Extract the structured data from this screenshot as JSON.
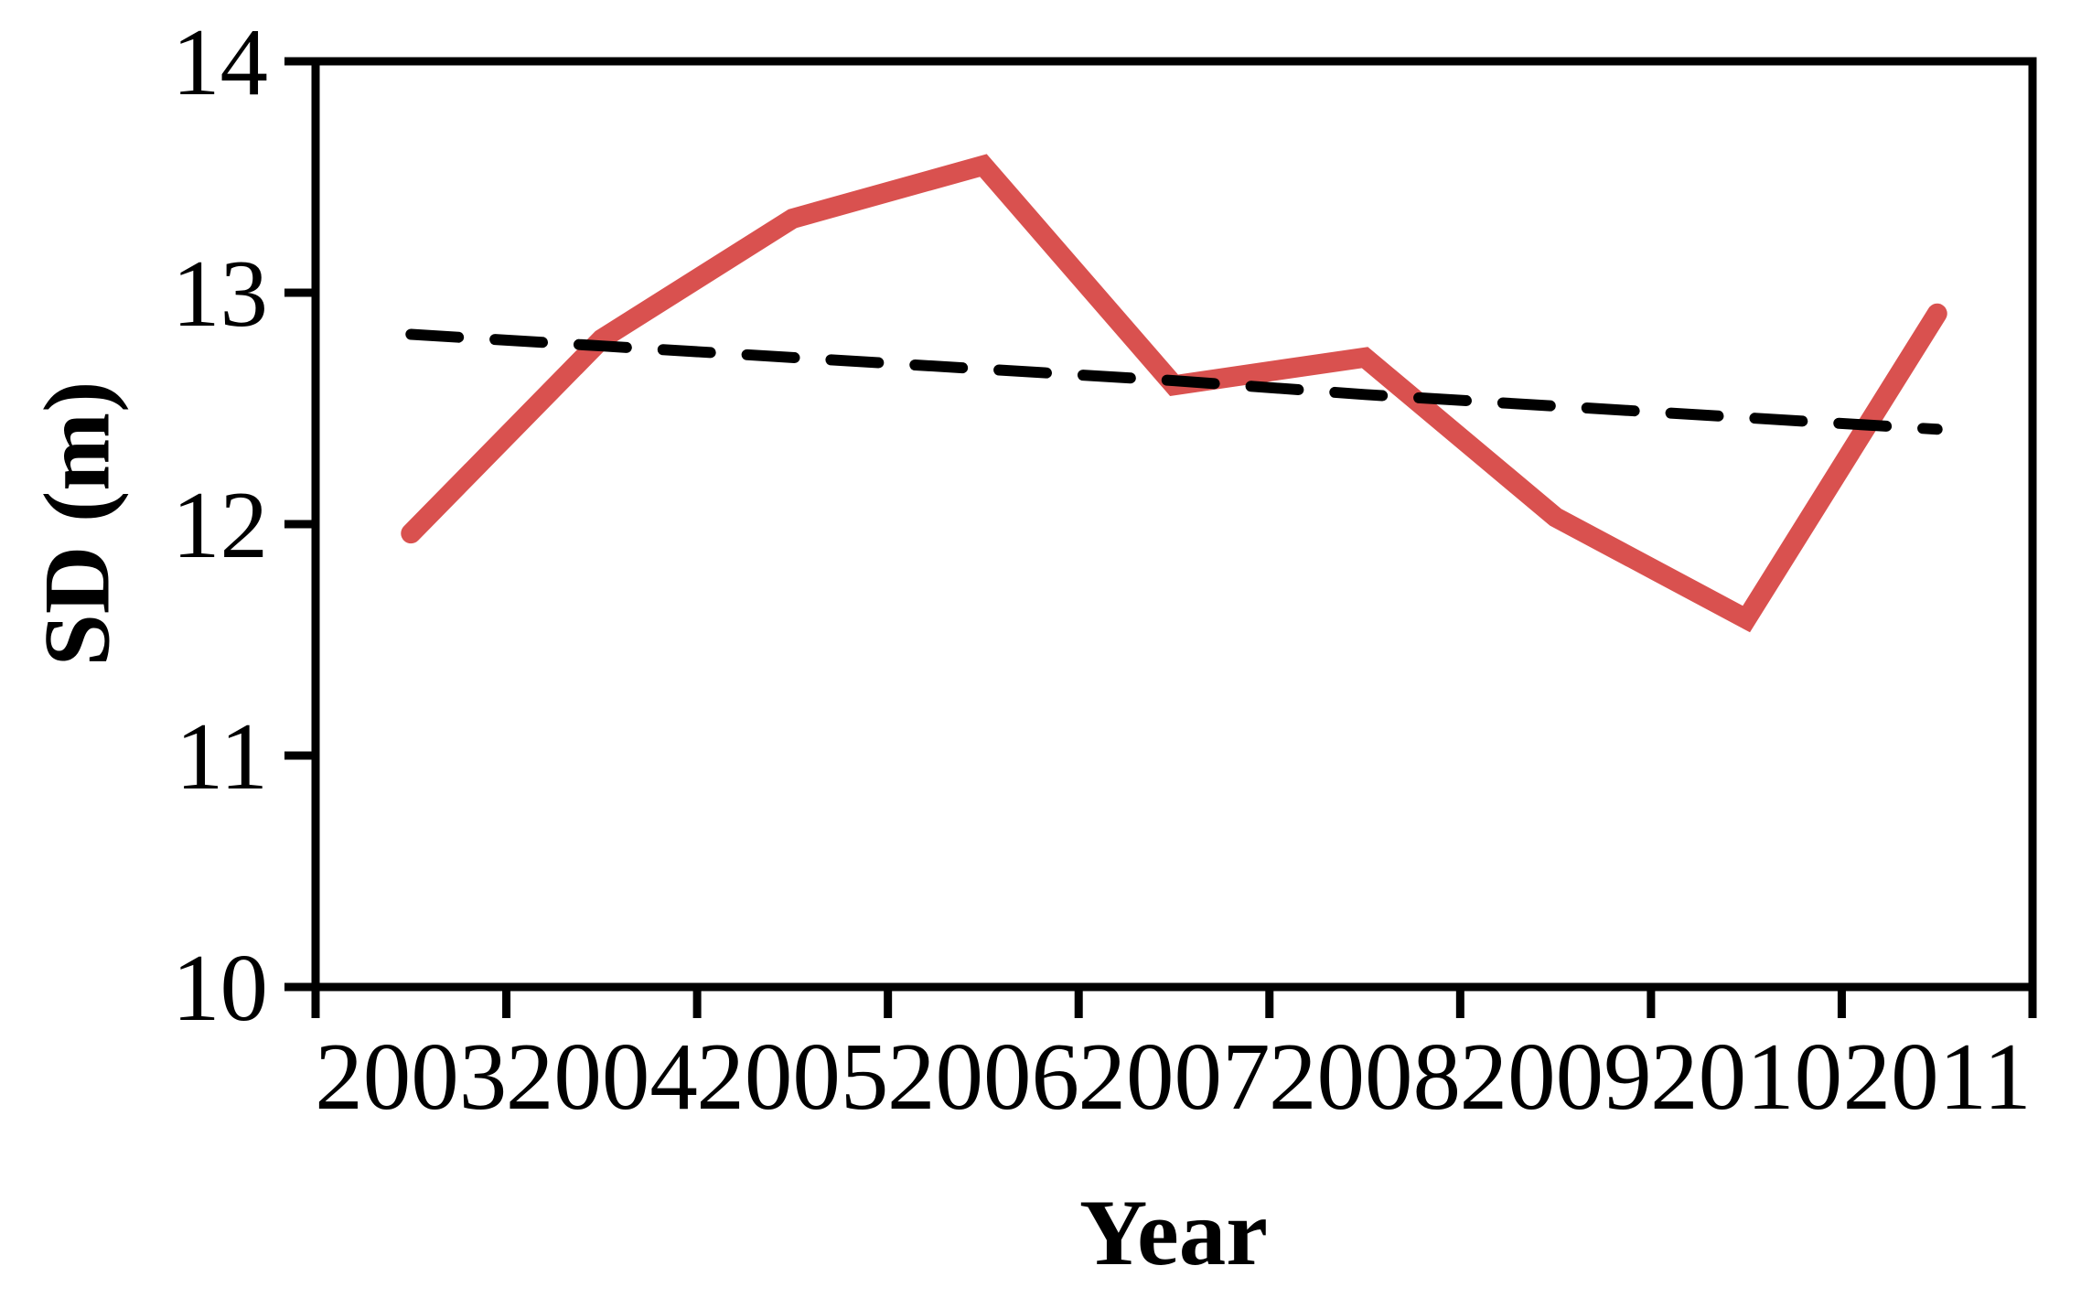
{
  "figure": {
    "background": "#ffffff",
    "text_color": "#000000"
  },
  "chart_data": {
    "type": "line",
    "title": "",
    "xlabel": "Year",
    "ylabel": "SD (m)",
    "categories": [
      "2003",
      "2004",
      "2005",
      "2006",
      "2007",
      "2008",
      "2009",
      "2010",
      "2011"
    ],
    "series": [
      {
        "name": "SD",
        "line_style": "solid",
        "color": "#d9514f",
        "stroke_width": 22,
        "values": [
          11.96,
          12.8,
          13.32,
          13.55,
          12.6,
          12.72,
          12.03,
          11.59,
          12.91
        ]
      },
      {
        "name": "linear trend",
        "line_style": "dashed",
        "color": "#000000",
        "stroke_width": 12,
        "values": [
          12.82,
          12.77,
          12.72,
          12.67,
          12.62,
          12.56,
          12.51,
          12.46,
          12.41
        ]
      }
    ],
    "ylim": [
      10,
      14
    ],
    "yticks": [
      "10",
      "11",
      "12",
      "13",
      "14"
    ],
    "ytick_values": [
      10,
      11,
      12,
      13,
      14
    ],
    "x_tick_mode": "boundaries",
    "grid": false,
    "legend": false,
    "axis_color": "#000000"
  }
}
